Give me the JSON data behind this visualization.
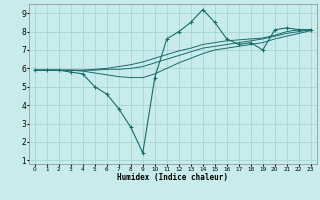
{
  "xlabel": "Humidex (Indice chaleur)",
  "xlim": [
    -0.5,
    23.5
  ],
  "ylim": [
    0.8,
    9.5
  ],
  "bg_color": "#c8ecec",
  "grid_color": "#aad4d4",
  "line_color": "#1a6b6b",
  "series": [
    [
      5.9,
      5.9,
      5.9,
      5.8,
      5.7,
      5.0,
      4.6,
      3.8,
      2.8,
      1.4,
      5.5,
      7.6,
      8.0,
      8.5,
      9.2,
      8.5,
      7.6,
      7.3,
      7.4,
      7.0,
      8.1,
      8.2,
      8.1,
      8.1
    ],
    [
      5.9,
      5.9,
      5.9,
      5.9,
      5.85,
      5.75,
      5.65,
      5.55,
      5.5,
      5.5,
      5.7,
      6.0,
      6.3,
      6.55,
      6.8,
      7.0,
      7.1,
      7.2,
      7.3,
      7.4,
      7.6,
      7.75,
      7.9,
      8.05
    ],
    [
      5.9,
      5.9,
      5.9,
      5.9,
      5.9,
      5.9,
      5.95,
      5.95,
      6.0,
      6.1,
      6.3,
      6.5,
      6.7,
      6.9,
      7.1,
      7.2,
      7.3,
      7.4,
      7.5,
      7.6,
      7.75,
      7.9,
      8.0,
      8.1
    ],
    [
      5.9,
      5.9,
      5.9,
      5.9,
      5.9,
      5.95,
      6.0,
      6.1,
      6.2,
      6.35,
      6.55,
      6.75,
      6.95,
      7.1,
      7.3,
      7.4,
      7.5,
      7.55,
      7.6,
      7.65,
      7.8,
      8.0,
      8.1,
      8.1
    ]
  ]
}
